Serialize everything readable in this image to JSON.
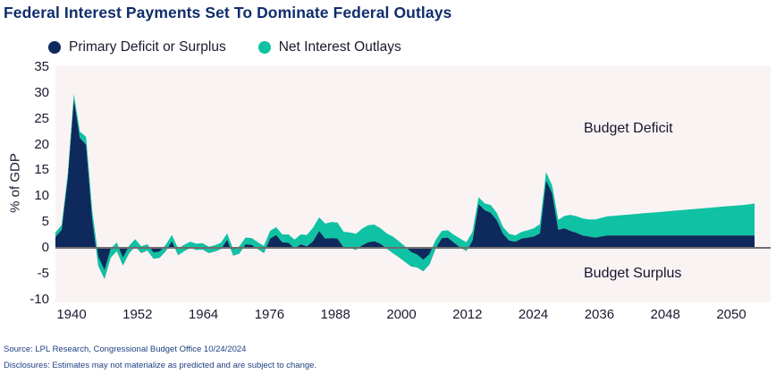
{
  "title": "Federal Interest Payments Set To Dominate Federal Outlays",
  "legend": {
    "items": [
      {
        "label": "Primary Deficit or Surplus",
        "color_key": "navy"
      },
      {
        "label": "Net Interest Outlays",
        "color_key": "teal"
      }
    ]
  },
  "annotations": {
    "deficit": "Budget Deficit",
    "surplus": "Budget Surplus"
  },
  "source": "Source: LPL Research, Congressional Budget Office 10/24/2024",
  "disclosures": "Disclosures: Estimates may not materialize as predicted and are subject to change.",
  "colors": {
    "navy": "#0E2A5C",
    "teal": "#0FC2A4",
    "plot_bg": "#F9F4F3",
    "zero_line": "#6F6F6F",
    "axis_text": "#1A1A30",
    "annotation_text": "#15152E",
    "title_text": "#0F2D6B",
    "source_text": "#1E3F7F"
  },
  "chart_data": {
    "type": "area",
    "stacked": true,
    "title": "Federal Interest Payments Set To Dominate Federal Outlays",
    "xlabel": "",
    "ylabel": "% of GDP",
    "ylim": [
      -10,
      35
    ],
    "grid": false,
    "legend_position": "top-left",
    "x_start": 1940,
    "x_end": 2054,
    "x_tick_labels": [
      "1940",
      "1952",
      "1964",
      "1976",
      "1988",
      "2000",
      "2012",
      "2024",
      "2036",
      "2048",
      "2050"
    ],
    "y_ticks": [
      35,
      30,
      25,
      20,
      15,
      10,
      5,
      0,
      -5,
      -10
    ],
    "units": "% of GDP",
    "series": [
      {
        "name": "Primary Deficit or Surplus",
        "color_key": "navy",
        "values": [
          2.1,
          3.5,
          13.4,
          28.8,
          21.3,
          20.0,
          5.5,
          -3.5,
          -6.0,
          -1.9,
          -0.6,
          -3.4,
          -1.1,
          0.3,
          -1.0,
          -0.5,
          -2.1,
          -1.9,
          -0.6,
          1.3,
          -1.4,
          -0.6,
          0.0,
          -0.4,
          -0.3,
          -1.0,
          -0.7,
          -0.2,
          1.6,
          -1.5,
          -1.1,
          0.7,
          0.6,
          -0.2,
          -1.0,
          1.8,
          2.5,
          1.1,
          1.0,
          -0.1,
          0.7,
          0.3,
          1.3,
          3.3,
          1.8,
          1.9,
          1.8,
          0.1,
          0.0,
          -0.4,
          0.5,
          1.1,
          1.3,
          0.8,
          -0.1,
          -1.0,
          -1.8,
          -2.7,
          -3.6,
          -3.8,
          -4.5,
          -3.2,
          -0.1,
          1.9,
          2.0,
          1.0,
          0.1,
          -0.6,
          1.4,
          8.5,
          7.3,
          6.8,
          5.3,
          2.7,
          1.4,
          1.2,
          1.8,
          2.0,
          2.2,
          2.8,
          13.1,
          10.6,
          3.5,
          3.8,
          3.3,
          2.9,
          2.4,
          2.2,
          2.0,
          2.2,
          2.4,
          2.4,
          2.4,
          2.4,
          2.4,
          2.4,
          2.4,
          2.4,
          2.4,
          2.4,
          2.4,
          2.4,
          2.4,
          2.4,
          2.4,
          2.4,
          2.4,
          2.4,
          2.4,
          2.4,
          2.4,
          2.4,
          2.4,
          2.4,
          2.4
        ]
      },
      {
        "name": "Net Interest Outlays",
        "color_key": "teal",
        "values": [
          0.9,
          0.9,
          0.8,
          1.0,
          1.2,
          1.5,
          1.7,
          1.8,
          1.7,
          1.7,
          1.7,
          1.5,
          1.5,
          1.4,
          1.3,
          1.2,
          1.2,
          1.2,
          1.2,
          1.2,
          1.3,
          1.2,
          1.2,
          1.2,
          1.2,
          1.2,
          1.2,
          1.2,
          1.2,
          1.2,
          1.4,
          1.3,
          1.3,
          1.3,
          1.4,
          1.5,
          1.5,
          1.5,
          1.6,
          1.7,
          1.9,
          2.2,
          2.6,
          2.6,
          2.9,
          3.1,
          3.1,
          3.0,
          3.0,
          3.1,
          3.2,
          3.3,
          3.2,
          3.0,
          2.9,
          3.2,
          3.1,
          3.0,
          2.8,
          2.5,
          2.2,
          2.0,
          1.6,
          1.4,
          1.4,
          1.5,
          1.7,
          1.7,
          1.7,
          1.3,
          1.3,
          1.5,
          1.4,
          1.3,
          1.3,
          1.2,
          1.3,
          1.4,
          1.6,
          1.8,
          1.6,
          1.5,
          1.9,
          2.4,
          3.1,
          3.2,
          3.3,
          3.3,
          3.5,
          3.6,
          3.7,
          3.8,
          3.9,
          4.0,
          4.1,
          4.2,
          4.3,
          4.4,
          4.5,
          4.6,
          4.7,
          4.8,
          4.9,
          5.0,
          5.1,
          5.2,
          5.3,
          5.4,
          5.5,
          5.6,
          5.7,
          5.8,
          5.9,
          6.0,
          6.2
        ]
      }
    ]
  }
}
